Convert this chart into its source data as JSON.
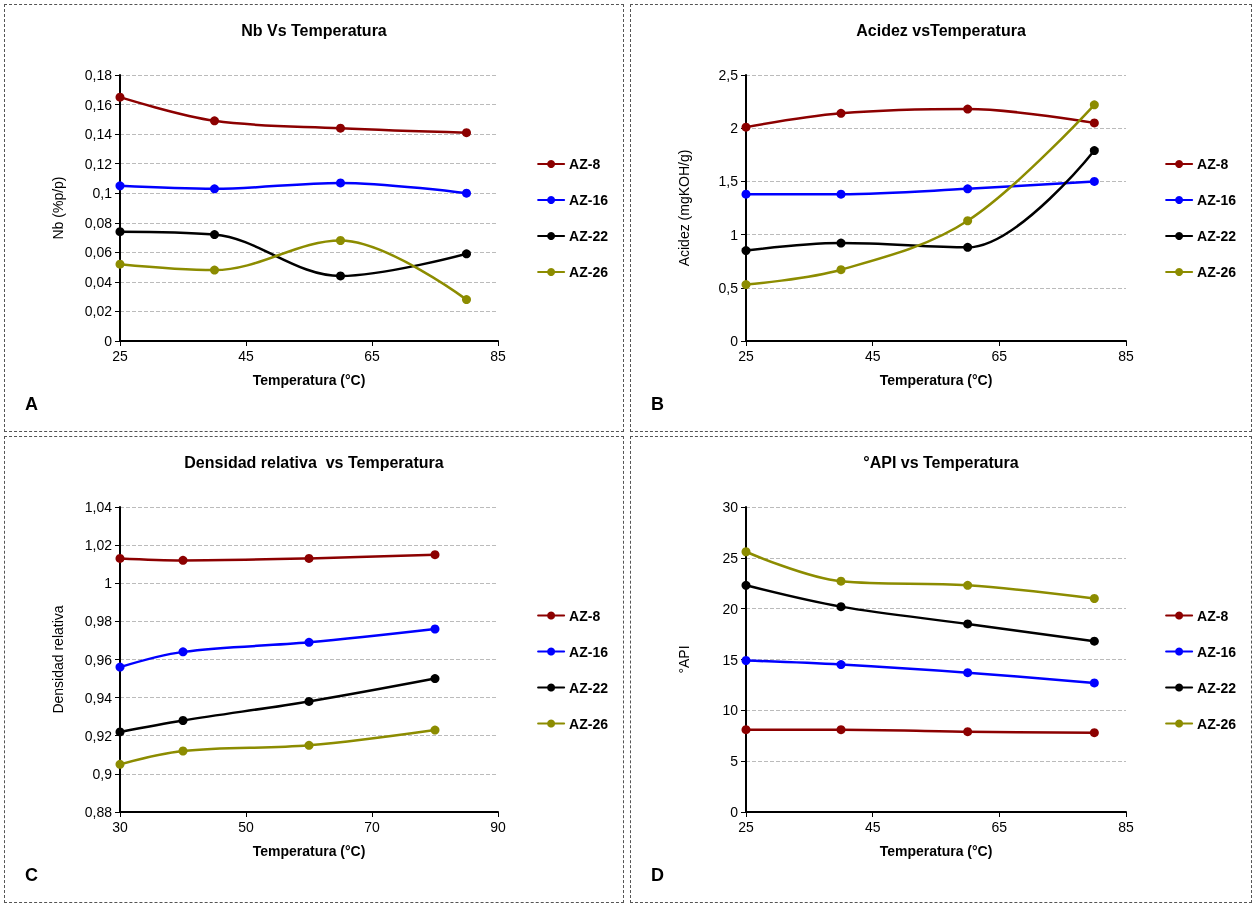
{
  "chart_data": [
    {
      "type": "line",
      "title": "Nb Vs Temperatura",
      "xlabel": "Temperatura (°C)",
      "ylabel": "Nb (%p/p)",
      "annotations": [
        "A"
      ],
      "x": [
        25,
        40,
        60,
        80
      ],
      "xlim": [
        25,
        85
      ],
      "xticks": [
        25,
        45,
        65,
        85
      ],
      "ylim": [
        0,
        0.18
      ],
      "yticks": [
        0,
        {
          "value": 0.02,
          "label": "0,02"
        },
        {
          "value": 0.04,
          "label": "0,04"
        },
        {
          "value": 0.06,
          "label": "0,06"
        },
        {
          "value": 0.08,
          "label": "0,08"
        },
        {
          "value": 0.1,
          "label": "0,1"
        },
        {
          "value": 0.12,
          "label": "0,12"
        },
        {
          "value": 0.14,
          "label": "0,14"
        },
        {
          "value": 0.16,
          "label": "0,16"
        },
        {
          "value": 0.18,
          "label": "0,18"
        }
      ],
      "grid": "y",
      "legend": "right",
      "marker": "circle",
      "line_style": "solid",
      "series": [
        {
          "name": "AZ-8",
          "color": "#8c0000",
          "values": [
            0.165,
            0.149,
            0.144,
            0.141
          ]
        },
        {
          "name": "AZ-16",
          "color": "#0000ff",
          "values": [
            0.105,
            0.103,
            0.107,
            0.1
          ]
        },
        {
          "name": "AZ-22",
          "color": "#000000",
          "values": [
            0.074,
            0.072,
            0.044,
            0.059
          ]
        },
        {
          "name": "AZ-26",
          "color": "#8c8c00",
          "values": [
            0.052,
            0.048,
            0.068,
            0.028
          ]
        }
      ]
    },
    {
      "type": "line",
      "title": "Acidez vsTemperatura",
      "xlabel": "Temperatura (°C)",
      "ylabel": "Acidez (mgKOH/g)",
      "annotations": [
        "B"
      ],
      "x": [
        25,
        40,
        60,
        80
      ],
      "xlim": [
        25,
        85
      ],
      "xticks": [
        25,
        45,
        65,
        85
      ],
      "ylim": [
        0,
        2.5
      ],
      "yticks": [
        0,
        {
          "value": 0.5,
          "label": "0,5"
        },
        1,
        {
          "value": 1.5,
          "label": "1,5"
        },
        2,
        {
          "value": 2.5,
          "label": "2,5"
        }
      ],
      "grid": "y",
      "legend": "right",
      "marker": "circle",
      "line_style": "solid",
      "series": [
        {
          "name": "AZ-8",
          "color": "#8c0000",
          "values": [
            2.01,
            2.14,
            2.18,
            2.05
          ]
        },
        {
          "name": "AZ-16",
          "color": "#0000ff",
          "values": [
            1.38,
            1.38,
            1.43,
            1.5
          ]
        },
        {
          "name": "AZ-22",
          "color": "#000000",
          "values": [
            0.85,
            0.92,
            0.88,
            1.79
          ]
        },
        {
          "name": "AZ-26",
          "color": "#8c8c00",
          "values": [
            0.53,
            0.67,
            1.13,
            2.22
          ]
        }
      ]
    },
    {
      "type": "line",
      "title": "Densidad relativa  vs Temperatura",
      "xlabel": "Temperatura (°C)",
      "ylabel": "Densidad relativa",
      "annotations": [
        "C"
      ],
      "x": [
        30,
        40,
        60,
        80
      ],
      "xlim": [
        30,
        90
      ],
      "xticks": [
        30,
        50,
        70,
        90
      ],
      "ylim": [
        0.88,
        1.04
      ],
      "yticks": [
        {
          "value": 0.88,
          "label": "0,88"
        },
        {
          "value": 0.9,
          "label": "0,9"
        },
        {
          "value": 0.92,
          "label": "0,92"
        },
        {
          "value": 0.94,
          "label": "0,94"
        },
        {
          "value": 0.96,
          "label": "0,96"
        },
        {
          "value": 0.98,
          "label": "0,98"
        },
        1,
        {
          "value": 1.02,
          "label": "1,02"
        },
        {
          "value": 1.04,
          "label": "1,04"
        }
      ],
      "grid": "y",
      "legend": "right",
      "marker": "circle",
      "line_style": "solid",
      "series": [
        {
          "name": "AZ-8",
          "color": "#8c0000",
          "values": [
            1.013,
            1.012,
            1.013,
            1.015
          ]
        },
        {
          "name": "AZ-16",
          "color": "#0000ff",
          "values": [
            0.956,
            0.964,
            0.969,
            0.976
          ]
        },
        {
          "name": "AZ-22",
          "color": "#000000",
          "values": [
            0.922,
            0.928,
            0.938,
            0.95
          ]
        },
        {
          "name": "AZ-26",
          "color": "#8c8c00",
          "values": [
            0.905,
            0.912,
            0.915,
            0.923
          ]
        }
      ]
    },
    {
      "type": "line",
      "title": "°API vs Temperatura",
      "xlabel": "Temperatura (°C)",
      "ylabel": "°API",
      "annotations": [
        "D"
      ],
      "x": [
        25,
        40,
        60,
        80
      ],
      "xlim": [
        25,
        85
      ],
      "xticks": [
        25,
        45,
        65,
        85
      ],
      "ylim": [
        0,
        30
      ],
      "yticks": [
        0,
        5,
        10,
        15,
        20,
        25,
        30
      ],
      "grid": "y",
      "legend": "right",
      "marker": "circle",
      "line_style": "solid",
      "series": [
        {
          "name": "AZ-8",
          "color": "#8c0000",
          "values": [
            8.1,
            8.1,
            7.9,
            7.8
          ]
        },
        {
          "name": "AZ-16",
          "color": "#0000ff",
          "values": [
            14.9,
            14.5,
            13.7,
            12.7
          ]
        },
        {
          "name": "AZ-22",
          "color": "#000000",
          "values": [
            22.3,
            20.2,
            18.5,
            16.8
          ]
        },
        {
          "name": "AZ-26",
          "color": "#8c8c00",
          "values": [
            25.6,
            22.7,
            22.3,
            21.0
          ]
        }
      ]
    }
  ]
}
